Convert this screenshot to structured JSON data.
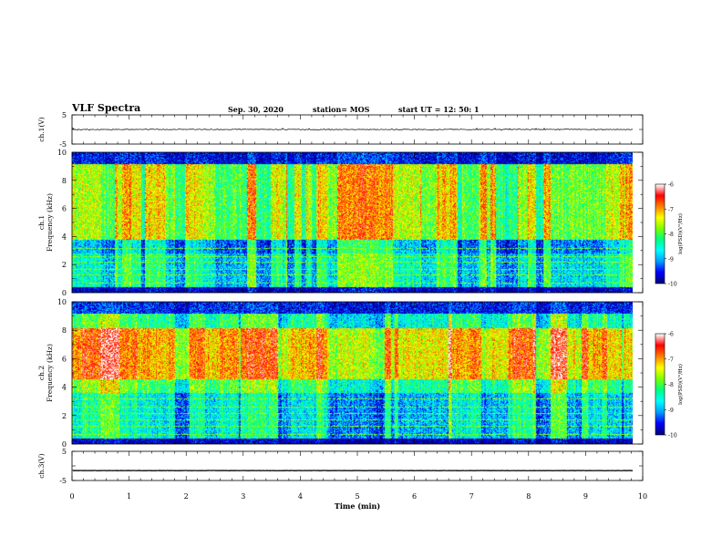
{
  "header": {
    "title": "VLF Spectra",
    "date": "Sep. 30, 2020",
    "station": "station= MOS",
    "start_ut": "start  UT =   12: 50: 1"
  },
  "chart_data": [
    {
      "type": "line",
      "panel": "ch1-waveform",
      "ylabel": "ch.1(V)",
      "ylim": [
        -5,
        5
      ],
      "yticks": [
        "5",
        "-5"
      ],
      "series": [
        {
          "y_level": 0
        }
      ]
    },
    {
      "type": "heatmap",
      "panel": "ch1-spectrogram",
      "ylabel": "ch.1\nFrequency (kHz)",
      "ylim": [
        0,
        10
      ],
      "yticks": [
        "0",
        "2",
        "4",
        "6",
        "8",
        "10"
      ],
      "xlim": [
        0,
        10
      ],
      "colorbar": {
        "label": "log(PSD)(V²/Hz)",
        "range": [
          -10,
          -6
        ],
        "ticks": [
          "-6",
          "-7",
          "-8",
          "-9",
          "-10"
        ]
      },
      "bands": [
        {
          "freq_khz": [
            0,
            0.4
          ],
          "log_psd": -9.8
        },
        {
          "freq_khz": [
            0.4,
            2.8
          ],
          "log_psd": -8.5
        },
        {
          "freq_khz": [
            2.8,
            3.8
          ],
          "log_psd": -8.9
        },
        {
          "freq_khz": [
            3.8,
            9.2
          ],
          "log_psd": -7.6
        },
        {
          "freq_khz": [
            9.2,
            10
          ],
          "log_psd": -9.6
        }
      ]
    },
    {
      "type": "heatmap",
      "panel": "ch2-spectrogram",
      "ylabel": "ch.2\nFrequency (kHz)",
      "ylim": [
        0,
        10
      ],
      "yticks": [
        "0",
        "2",
        "4",
        "6",
        "8",
        "10"
      ],
      "xlim": [
        0,
        10
      ],
      "colorbar": {
        "label": "log(PSD)(V²/Hz)",
        "range": [
          -10,
          -6
        ],
        "ticks": [
          "-6",
          "-7",
          "-8",
          "-9",
          "-10"
        ]
      },
      "bands": [
        {
          "freq_khz": [
            0,
            0.4
          ],
          "log_psd": -9.8
        },
        {
          "freq_khz": [
            0.4,
            3.6
          ],
          "log_psd": -8.6
        },
        {
          "freq_khz": [
            3.6,
            4.6
          ],
          "log_psd": -8.0
        },
        {
          "freq_khz": [
            4.6,
            8.2
          ],
          "log_psd": -7.0
        },
        {
          "freq_khz": [
            8.2,
            9.2
          ],
          "log_psd": -8.2
        },
        {
          "freq_khz": [
            9.2,
            10
          ],
          "log_psd": -9.5
        }
      ]
    },
    {
      "type": "line",
      "panel": "ch3-waveform",
      "ylabel": "ch.3(V)",
      "ylim": [
        -5,
        5
      ],
      "yticks": [
        "5",
        "-5"
      ],
      "series": [
        {
          "y_level": -1.6
        }
      ]
    }
  ],
  "xaxis": {
    "label": "Time (min)",
    "range": [
      0,
      10
    ],
    "ticks": [
      "0",
      "1",
      "2",
      "3",
      "4",
      "5",
      "6",
      "7",
      "8",
      "9",
      "10"
    ],
    "data_end": 9.83
  },
  "colors": {
    "colormap": [
      "#000080",
      "#0000ff",
      "#00a0ff",
      "#00ffff",
      "#00ff80",
      "#80ff00",
      "#ffff00",
      "#ff8000",
      "#ff0000",
      "#ffffff"
    ]
  }
}
